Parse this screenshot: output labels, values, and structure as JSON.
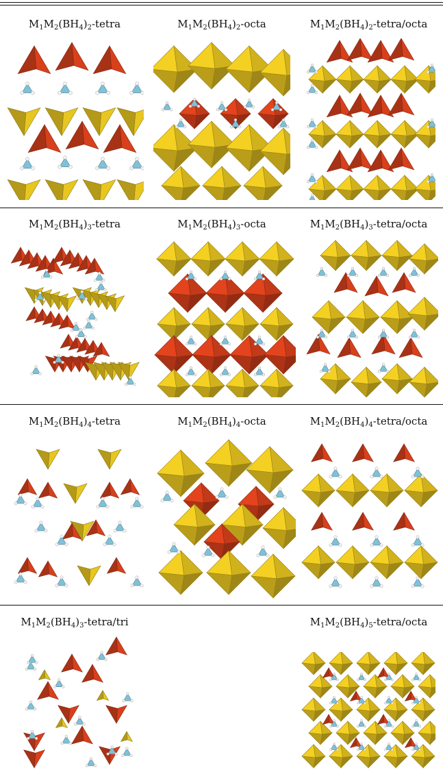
{
  "rows": [
    {
      "panels": [
        {
          "formula": "M1M2(BH4)2-tetra",
          "parts": [
            "M",
            "1",
            "M",
            "2",
            "(BH",
            "4",
            ")",
            "2",
            "-tetra"
          ],
          "structure": "layered-tetra"
        },
        {
          "formula": "M1M2(BH4)2-octa",
          "parts": [
            "M",
            "1",
            "M",
            "2",
            "(BH",
            "4",
            ")",
            "2",
            "-octa"
          ],
          "structure": "layered-octa"
        },
        {
          "formula": "M1M2(BH4)2-tetra/octa",
          "parts": [
            "M",
            "1",
            "M",
            "2",
            "(BH",
            "4",
            ")",
            "2",
            "-tetra/octa"
          ],
          "structure": "layered-mixed"
        }
      ]
    },
    {
      "panels": [
        {
          "formula": "M1M2(BH4)3-tetra",
          "parts": [
            "M",
            "1",
            "M",
            "2",
            "(BH",
            "4",
            ")",
            "3",
            "-tetra"
          ],
          "structure": "chain-tetra"
        },
        {
          "formula": "M1M2(BH4)3-octa",
          "parts": [
            "M",
            "1",
            "M",
            "2",
            "(BH",
            "4",
            ")",
            "3",
            "-octa"
          ],
          "structure": "layered-octa-dense"
        },
        {
          "formula": "M1M2(BH4)3-tetra/octa",
          "parts": [
            "M",
            "1",
            "M",
            "2",
            "(BH",
            "4",
            ")",
            "3",
            "-tetra/octa"
          ],
          "structure": "mixed-dense"
        }
      ]
    },
    {
      "panels": [
        {
          "formula": "M1M2(BH4)4-tetra",
          "parts": [
            "M",
            "1",
            "M",
            "2",
            "(BH",
            "4",
            ")",
            "4",
            "-tetra"
          ],
          "structure": "open-tetra"
        },
        {
          "formula": "M1M2(BH4)4-octa",
          "parts": [
            "M",
            "1",
            "M",
            "2",
            "(BH",
            "4",
            ")",
            "4",
            "-octa"
          ],
          "structure": "framework-octa"
        },
        {
          "formula": "M1M2(BH4)4-tetra/octa",
          "parts": [
            "M",
            "1",
            "M",
            "2",
            "(BH",
            "4",
            ")",
            "4",
            "-tetra/octa"
          ],
          "structure": "framework-mixed"
        }
      ]
    },
    {
      "panels": [
        {
          "formula": "M1M2(BH4)3-tetra/tri",
          "parts": [
            "M",
            "1",
            "M",
            "2",
            "(BH",
            "4",
            ")",
            "3",
            "-tetra/tri"
          ],
          "structure": "tetra-tri"
        },
        {
          "formula": "M1M2(BH4)5-tetra/octa",
          "parts": [
            "M",
            "1",
            "M",
            "2",
            "(BH",
            "4",
            ")",
            "5",
            "-tetra/octa"
          ],
          "structure": "compact-mixed"
        }
      ]
    }
  ],
  "colors": {
    "tetra_red": "#d8401c",
    "octa_yellow": "#e8c620",
    "bh4_blue": "#7fc1d8",
    "hydrogen": "#f2f2f2",
    "rule": "#111111"
  }
}
